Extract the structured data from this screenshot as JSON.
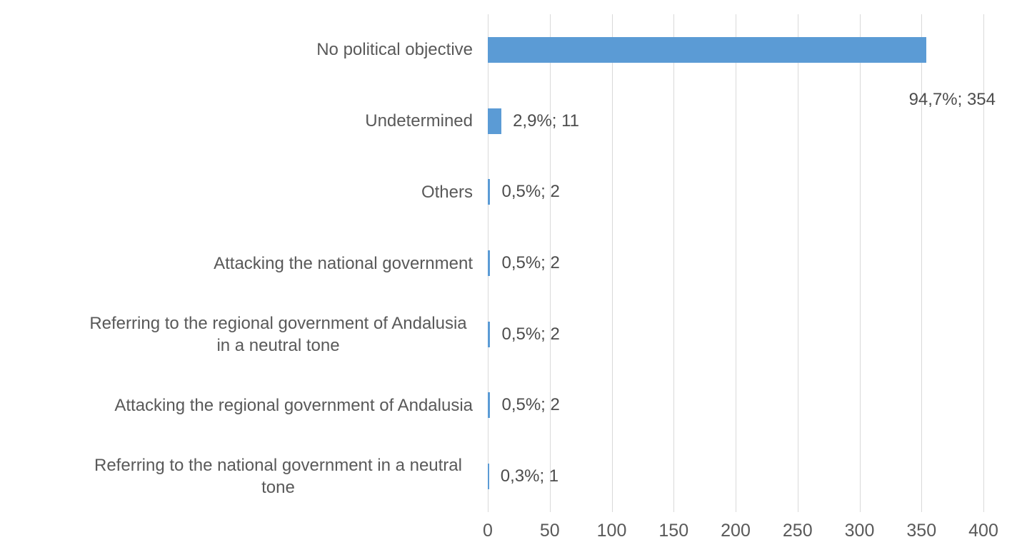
{
  "chart_data": {
    "type": "bar",
    "orientation": "horizontal",
    "title": "",
    "xlabel": "",
    "ylabel": "",
    "xlim": [
      0,
      400
    ],
    "x_ticks": [
      "0",
      "50",
      "100",
      "150",
      "200",
      "250",
      "300",
      "350",
      "400"
    ],
    "grid": "vertical-gridlines-on",
    "legend": "none",
    "categories": [
      "No political objective",
      "Undetermined",
      "Others",
      "Attacking the national government",
      "Referring to the regional government of Andalusia in a neutral tone",
      "Attacking the regional government of Andalusia",
      "Referring to the national government in a neutral tone"
    ],
    "values": [
      354,
      11,
      2,
      2,
      2,
      2,
      1
    ],
    "rows": [
      {
        "category": "No political objective",
        "value": 354,
        "data_label": "94,7%; 354"
      },
      {
        "category": "Undetermined",
        "value": 11,
        "data_label": "2,9%; 11"
      },
      {
        "category": "Others",
        "value": 2,
        "data_label": "0,5%; 2"
      },
      {
        "category": "Attacking the national government",
        "value": 2,
        "data_label": "0,5%; 2"
      },
      {
        "category": "Referring to the regional government of Andalusia in a neutral tone",
        "value": 2,
        "data_label": "0,5%; 2"
      },
      {
        "category": "Attacking the regional government of Andalusia",
        "value": 2,
        "data_label": "0,5%; 2"
      },
      {
        "category": "Referring to the national government in a neutral tone",
        "value": 1,
        "data_label": "0,3%; 1"
      }
    ],
    "colors": {
      "bar": "#5B9BD5",
      "gridline": "#D9D9D9",
      "text": "#595959"
    }
  }
}
